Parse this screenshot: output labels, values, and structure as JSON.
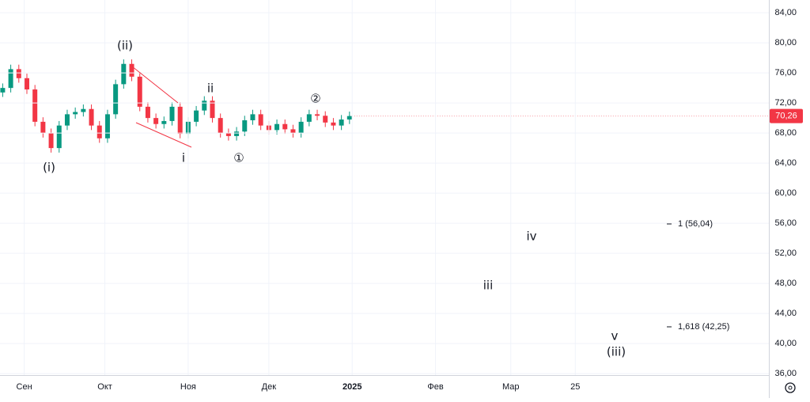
{
  "chart_data": {
    "type": "candlestick",
    "x": [
      -8,
      -5,
      -2,
      1,
      4,
      7,
      10,
      13,
      16,
      19,
      22,
      25,
      28,
      31,
      34,
      37,
      40,
      43,
      46,
      49,
      52,
      55,
      58,
      61,
      64,
      67,
      70,
      73,
      76,
      79,
      82,
      85,
      88,
      91,
      94,
      97,
      100,
      103,
      106,
      109,
      112,
      115,
      118,
      121
    ],
    "open": [
      73.4,
      74.0,
      76.5,
      75.3,
      73.8,
      69.5,
      68.0,
      66.0,
      69.0,
      70.5,
      70.8,
      71.2,
      69.0,
      67.3,
      70.5,
      74.5,
      77.2,
      75.5,
      71.5,
      70.0,
      69.2,
      69.6,
      71.5,
      67.9,
      69.5,
      71.0,
      72.3,
      70.0,
      68.0,
      67.6,
      68.2,
      69.7,
      70.5,
      69.0,
      68.4,
      69.2,
      68.5,
      68.0,
      69.5,
      70.5,
      70.3,
      69.4,
      69.0,
      69.8
    ],
    "high": [
      74.6,
      77.1,
      77.1,
      75.9,
      74.4,
      70.1,
      68.6,
      69.6,
      71.1,
      71.4,
      71.8,
      71.8,
      69.6,
      71.1,
      75.1,
      77.8,
      77.8,
      76.1,
      72.1,
      70.6,
      70.2,
      72.1,
      72.1,
      70.1,
      71.6,
      72.9,
      72.9,
      70.6,
      68.6,
      68.8,
      70.3,
      71.1,
      71.1,
      69.6,
      69.8,
      69.8,
      69.1,
      70.1,
      71.1,
      71.1,
      70.9,
      70.0,
      70.4,
      70.86
    ],
    "low": [
      72.8,
      73.4,
      74.7,
      73.2,
      68.9,
      67.4,
      65.4,
      65.4,
      68.4,
      69.9,
      70.2,
      68.4,
      66.7,
      66.7,
      69.9,
      73.9,
      74.9,
      70.9,
      69.4,
      68.6,
      68.6,
      69.0,
      67.3,
      67.3,
      68.9,
      70.4,
      69.4,
      67.4,
      67.0,
      67.0,
      67.6,
      69.1,
      68.4,
      67.8,
      67.8,
      67.9,
      67.4,
      67.4,
      68.9,
      69.7,
      68.8,
      68.4,
      68.4,
      69.2
    ],
    "close": [
      74.0,
      76.5,
      75.3,
      73.8,
      69.5,
      68.0,
      66.0,
      69.0,
      70.5,
      70.8,
      71.2,
      69.0,
      67.3,
      70.5,
      74.5,
      77.2,
      75.5,
      71.5,
      70.0,
      69.2,
      69.6,
      71.5,
      67.9,
      69.5,
      71.0,
      72.3,
      70.0,
      68.0,
      67.6,
      68.2,
      69.7,
      70.5,
      69.0,
      68.4,
      69.2,
      68.5,
      68.0,
      69.5,
      70.5,
      70.3,
      69.4,
      69.0,
      69.8,
      70.26
    ],
    "up_color": "#089981",
    "down_color": "#f23645",
    "xlim": [
      -9,
      277
    ],
    "xticks": [
      {
        "value": 0,
        "label": "Сен"
      },
      {
        "value": 30,
        "label": "Окт"
      },
      {
        "value": 61,
        "label": "Ноя"
      },
      {
        "value": 91,
        "label": "Дек"
      },
      {
        "value": 122,
        "label": "2025"
      },
      {
        "value": 153,
        "label": "Фев"
      },
      {
        "value": 181,
        "label": "Мар"
      },
      {
        "value": 205,
        "label": "25"
      }
    ],
    "ylim": [
      35.8,
      85.7
    ],
    "yticks": [
      {
        "value": 36,
        "label": "36,00"
      },
      {
        "value": 40,
        "label": "40,00"
      },
      {
        "value": 44,
        "label": "44,00"
      },
      {
        "value": 48,
        "label": "48,00"
      },
      {
        "value": 52,
        "label": "52,00"
      },
      {
        "value": 56,
        "label": "56,00"
      },
      {
        "value": 60,
        "label": "60,00"
      },
      {
        "value": 64,
        "label": "64,00"
      },
      {
        "value": 68,
        "label": "68,00"
      },
      {
        "value": 72,
        "label": "72,00"
      },
      {
        "value": 76,
        "label": "76,00"
      },
      {
        "value": 80,
        "label": "80,00"
      },
      {
        "value": 84,
        "label": "84,00"
      }
    ],
    "grid": true,
    "last_price": {
      "value": 70.26,
      "label": "70,26"
    },
    "annotations": [
      "(ii)",
      "(i)",
      "i",
      "ii",
      "①",
      "②",
      "iii",
      "iv",
      "v",
      "(iii)"
    ],
    "levels": [
      "1 (56,04)",
      "1,618 (42,25)"
    ]
  }
}
